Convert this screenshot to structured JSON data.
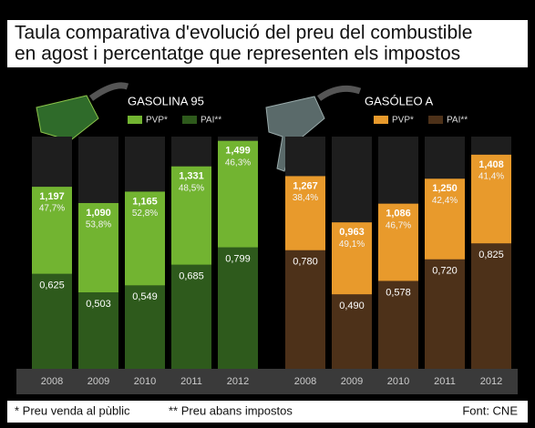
{
  "title": [
    "Taula comparativa d'evolució del preu del combustible",
    "en agost i percentatge que representen els impostos"
  ],
  "footnotes": [
    "* Preu venda al pùblic",
    "** Preu abans impostos"
  ],
  "source": "Font: CNE",
  "chart_data": [
    {
      "type": "bar",
      "title": "GASOLINA 95",
      "categories": [
        "2008",
        "2009",
        "2010",
        "2011",
        "2012"
      ],
      "series": [
        {
          "name": "PVP*",
          "color": "#72b431",
          "values": [
            1.197,
            1.09,
            1.165,
            1.331,
            1.499
          ],
          "value_labels": [
            "1,197",
            "1,090",
            "1,165",
            "1,331",
            "1,499"
          ]
        },
        {
          "name": "PAI**",
          "color": "#2e5a1c",
          "values": [
            0.625,
            0.503,
            0.549,
            0.685,
            0.799
          ],
          "value_labels": [
            "0,625",
            "0,503",
            "0,549",
            "0,685",
            "0,799"
          ]
        }
      ],
      "tax_share": [
        47.7,
        53.8,
        52.8,
        48.5,
        46.3
      ],
      "tax_share_labels": [
        "47,7%",
        "53,8%",
        "52,8%",
        "48,5%",
        "46,3%"
      ]
    },
    {
      "type": "bar",
      "title": "GASÓLEO A",
      "categories": [
        "2008",
        "2009",
        "2010",
        "2011",
        "2012"
      ],
      "series": [
        {
          "name": "PVP*",
          "color": "#e89a2c",
          "values": [
            1.267,
            0.963,
            1.086,
            1.25,
            1.408
          ],
          "value_labels": [
            "1,267",
            "0,963",
            "1,086",
            "1,250",
            "1,408"
          ]
        },
        {
          "name": "PAI**",
          "color": "#4d3119",
          "values": [
            0.78,
            0.49,
            0.578,
            0.72,
            0.825
          ],
          "value_labels": [
            "0,780",
            "0,490",
            "0,578",
            "0,720",
            "0,825"
          ]
        }
      ],
      "tax_share": [
        38.4,
        49.1,
        46.7,
        42.4,
        41.4
      ],
      "tax_share_labels": [
        "38,4%",
        "49,1%",
        "46,7%",
        "42,4%",
        "41,4%"
      ]
    }
  ]
}
